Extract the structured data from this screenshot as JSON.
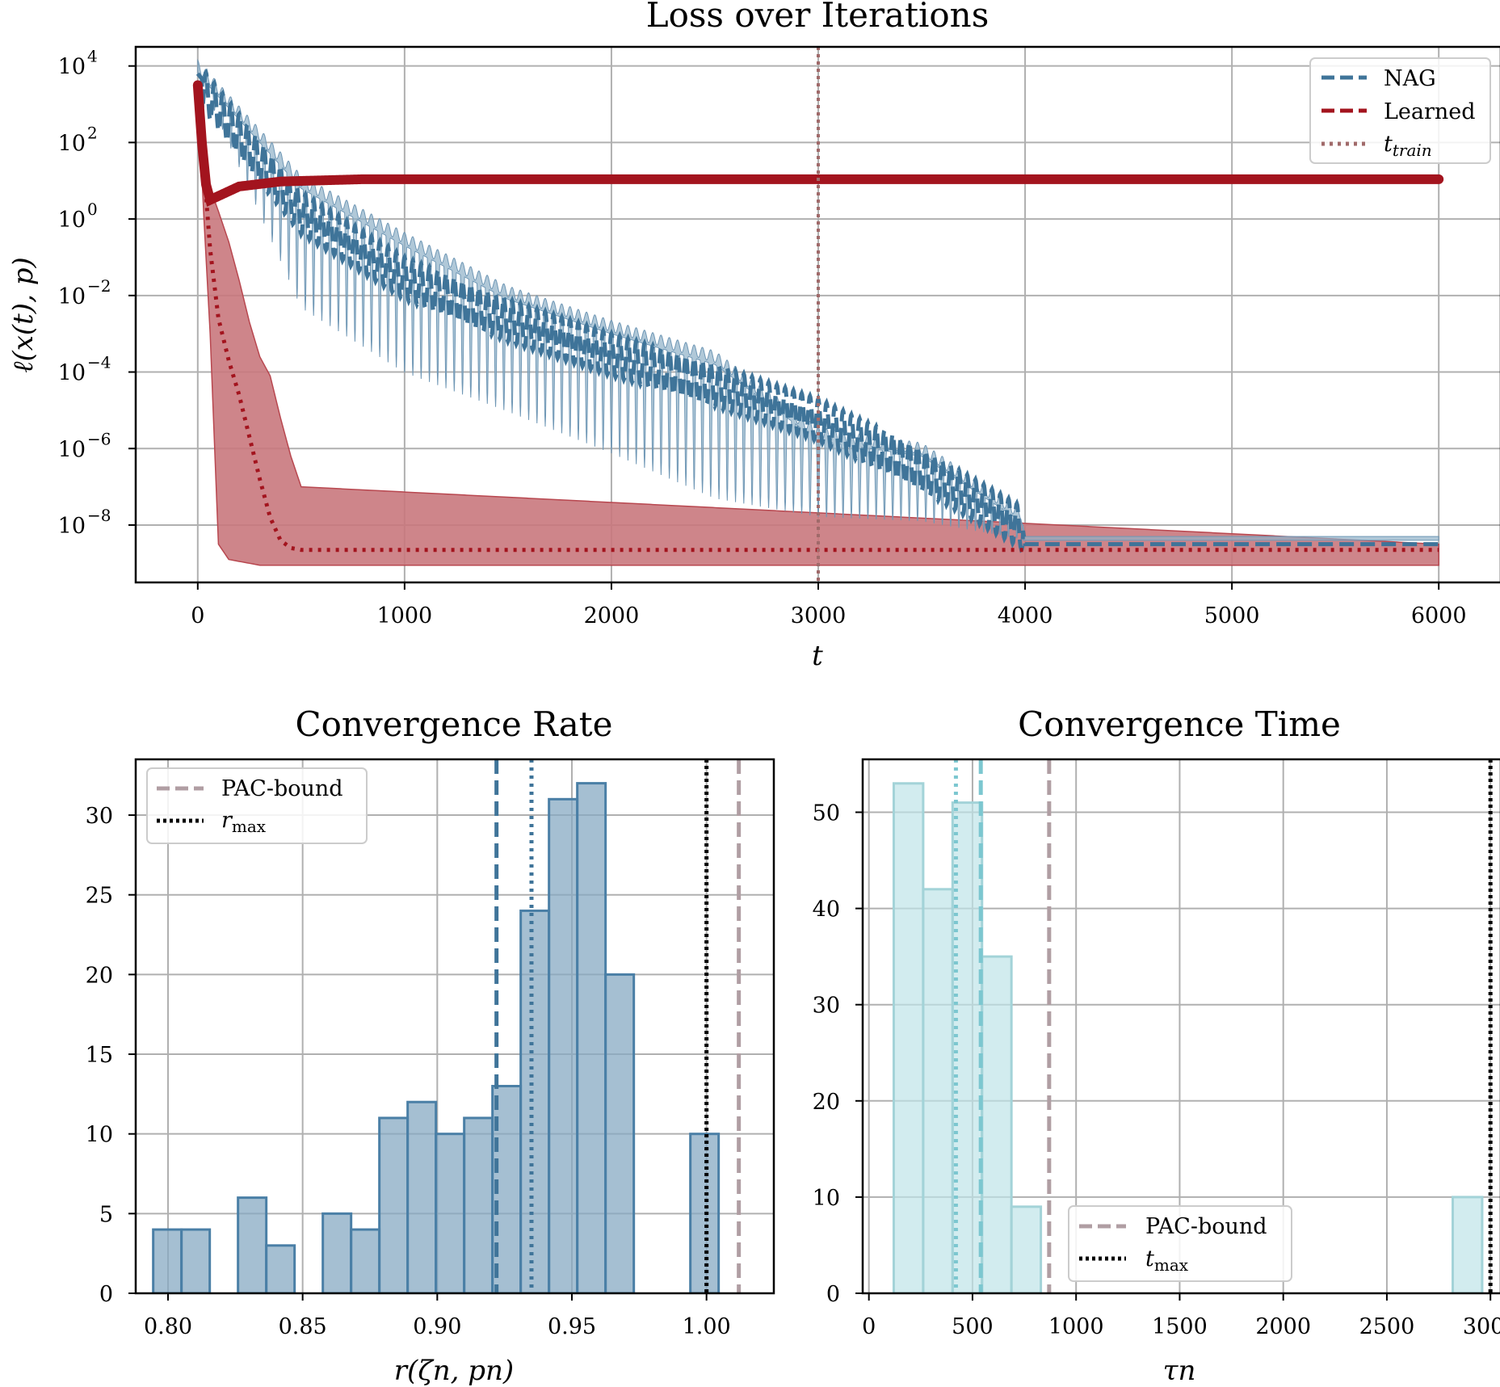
{
  "colors": {
    "nag": "#3f7499",
    "nag_fill": "#8fb0c8",
    "learned": "#a3141e",
    "learned_fill": "#c9787d",
    "t_train": "#a06a6a",
    "pac": "#b09ea3",
    "max": "#000000",
    "hist_rate": "#87a9c3",
    "hist_rate_edge": "#4a7fa6",
    "hist_time": "#bfe4e8",
    "hist_time_edge": "#a3d3d8",
    "time_mean": "#7cc7d0"
  },
  "chart_data": [
    {
      "type": "line",
      "title": "Loss over Iterations",
      "xlabel": "t",
      "ylabel": "ℓ(x(t), p)",
      "yscale": "log",
      "xlim": [
        -300,
        6300
      ],
      "ylim_log10": [
        -9.5,
        4.5
      ],
      "xticks": [
        0,
        1000,
        2000,
        3000,
        4000,
        5000,
        6000
      ],
      "xtick_labels": [
        "0",
        "1000",
        "2000",
        "3000",
        "4000",
        "5000",
        "6000"
      ],
      "yticks_log10": [
        4,
        2,
        0,
        -2,
        -4,
        -6,
        -8
      ],
      "ytick_labels": [
        "10",
        "10",
        "10",
        "10",
        "10",
        "10",
        "10"
      ],
      "ytick_exponents": [
        "4",
        "2",
        "0",
        "−2",
        "−4",
        "−6",
        "−8"
      ],
      "legend": [
        "NAG",
        "Learned",
        "t"
      ],
      "legend_subscript": "train",
      "t_train": 3000,
      "series": [
        {
          "name": "NAG",
          "style": "dashed",
          "description": "oscillating decay from ~1e4 at t=0 to ~3e-9 plateau after t≈4000",
          "x": [
            0,
            500,
            1000,
            1500,
            2000,
            2500,
            3000,
            3500,
            3980,
            4000,
            6000
          ],
          "y_log10": [
            3.8,
            0.4,
            -1.3,
            -2.4,
            -3.3,
            -4.1,
            -5.0,
            -6.3,
            -7.8,
            -8.5,
            -8.5
          ],
          "band_low_log10": [
            3.8,
            -2.5,
            -4.2,
            -5.2,
            -6.3,
            -7.5,
            -7.9,
            -8.0,
            -8.4,
            -8.4,
            -8.4
          ],
          "band_high_log10": [
            4.0,
            1.0,
            -0.5,
            -1.9,
            -2.8,
            -3.6,
            -5.6,
            -6.0,
            -7.7,
            -8.3,
            -8.3
          ]
        },
        {
          "name": "Learned",
          "style": "dashed",
          "description": "drops to ~3 then levels at ~11",
          "x": [
            0,
            20,
            40,
            60,
            100,
            200,
            400,
            800,
            6000
          ],
          "y_log10": [
            3.5,
            2.0,
            0.9,
            0.5,
            0.6,
            0.85,
            0.98,
            1.04,
            1.04
          ]
        },
        {
          "name": "Learned (median)",
          "style": "dotted",
          "x": [
            0,
            30,
            60,
            100,
            150,
            200,
            250,
            300,
            350,
            400,
            450,
            500,
            6000
          ],
          "y_log10": [
            3.3,
            1.3,
            -0.8,
            -2.6,
            -3.7,
            -4.6,
            -5.7,
            -6.8,
            -7.8,
            -8.4,
            -8.6,
            -8.65,
            -8.65
          ],
          "band_low_log10": [
            3.4,
            0.0,
            -3.0,
            -8.5,
            -8.9,
            -8.95,
            -9.0,
            -9.05,
            -9.05,
            -9.05,
            -9.05,
            -9.05,
            -9.05
          ],
          "band_high_log10": [
            3.5,
            2.0,
            0.8,
            0.2,
            -0.6,
            -1.6,
            -2.7,
            -3.6,
            -4.1,
            -5.2,
            -6.2,
            -7.0,
            -8.5
          ]
        }
      ]
    },
    {
      "type": "bar",
      "title": "Convergence Rate",
      "xlabel": "r(ζn, pn)",
      "xlim": [
        0.788,
        1.025
      ],
      "ylim": [
        0,
        33.5
      ],
      "xticks": [
        0.8,
        0.85,
        0.9,
        0.95,
        1.0
      ],
      "xtick_labels": [
        "0.80",
        "0.85",
        "0.90",
        "0.95",
        "1.00"
      ],
      "yticks": [
        0,
        5,
        10,
        15,
        20,
        25,
        30
      ],
      "ytick_labels": [
        "0",
        "5",
        "10",
        "15",
        "20",
        "25",
        "30"
      ],
      "bin_edges": [
        0.7945,
        0.805,
        0.8155,
        0.826,
        0.8365,
        0.847,
        0.8575,
        0.868,
        0.8785,
        0.889,
        0.8995,
        0.91,
        0.9205,
        0.931,
        0.9415,
        0.952,
        0.9625,
        0.973,
        0.9835,
        0.994,
        1.0045
      ],
      "counts": [
        4,
        4,
        0,
        6,
        3,
        0,
        5,
        4,
        11,
        12,
        10,
        11,
        13,
        24,
        31,
        32,
        20,
        0,
        0,
        10
      ],
      "mean_dashed": 0.922,
      "median_dotted": 0.935,
      "pac_bound": 1.012,
      "r_max": 1.0,
      "legend": [
        "PAC-bound",
        "r"
      ],
      "legend_subscript": "max"
    },
    {
      "type": "bar",
      "title": "Convergence Time",
      "xlabel": "τn",
      "xlim": [
        -30,
        3050
      ],
      "ylim": [
        0,
        55.5
      ],
      "xticks": [
        0,
        500,
        1000,
        1500,
        2000,
        2500,
        3000
      ],
      "xtick_labels": [
        "0",
        "500",
        "1000",
        "1500",
        "2000",
        "2500",
        "3000"
      ],
      "yticks": [
        0,
        10,
        20,
        30,
        40,
        50
      ],
      "ytick_labels": [
        "0",
        "10",
        "20",
        "30",
        "40",
        "50"
      ],
      "bin_edges": [
        120,
        262,
        404,
        546,
        688,
        830,
        972,
        1114,
        1256,
        1398,
        1540,
        1682,
        1824,
        1966,
        2108,
        2250,
        2392,
        2534,
        2676,
        2818,
        2960
      ],
      "counts": [
        53,
        42,
        51,
        35,
        9,
        0,
        0,
        0,
        0,
        0,
        0,
        0,
        0,
        0,
        0,
        0,
        0,
        0,
        0,
        10
      ],
      "mean_dashed": 540,
      "median_dotted": 420,
      "pac_bound": 870,
      "t_max": 3000,
      "legend": [
        "PAC-bound",
        "t"
      ],
      "legend_subscript": "max"
    }
  ]
}
